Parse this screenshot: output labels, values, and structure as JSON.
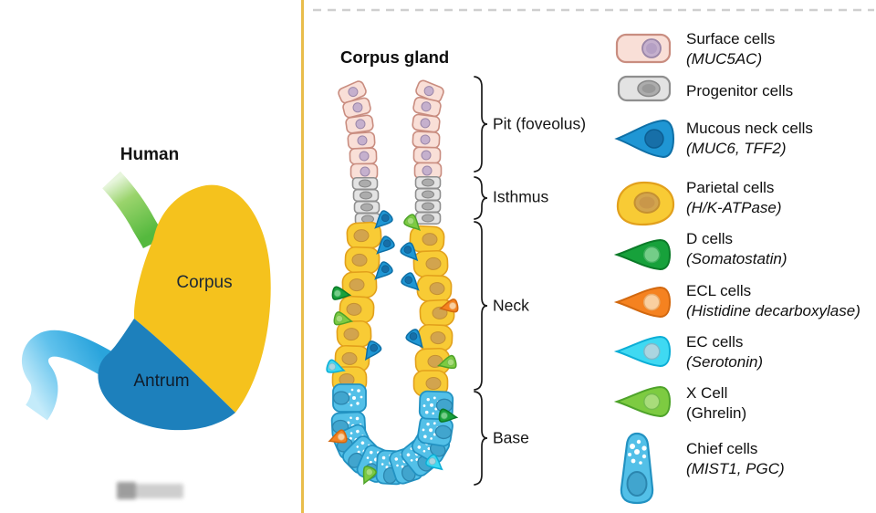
{
  "divider_color": "#E9BD4B",
  "dashed_line_color": "#CFCFCF",
  "human_panel": {
    "title": "Human",
    "labels": [
      {
        "label": "Corpus"
      },
      {
        "label": "Antrum"
      }
    ],
    "corpus_color": "#F5C21D",
    "antrum_color": "#1D80BC",
    "esophagus_color": "#55B93E",
    "esophagus_light": "#E7F5DC",
    "duodenum_color": "#2AA4DC",
    "duodenum_light": "#C4EBFA"
  },
  "gland_panel": {
    "title": "Corpus gland",
    "regions": [
      {
        "label": "Pit (foveolus)"
      },
      {
        "label": "Isthmus"
      },
      {
        "label": "Neck"
      },
      {
        "label": "Base"
      }
    ]
  },
  "gland_cells": {
    "left_pit_count": 6,
    "right_pit_count": 6,
    "left_isthmus_count": 4,
    "right_isthmus_count": 4,
    "left_neck_parietal_count": 7,
    "right_neck_parietal_count": 7,
    "left_neck_wedges": [
      "mucous",
      "mucous",
      "mucous",
      "d",
      "x",
      "mucous",
      "ec"
    ],
    "right_neck_wedges": [
      "x",
      "mucous",
      "mucous",
      "ecl",
      "mucous",
      "x"
    ],
    "base_chief_count": 11,
    "base_wedges": [
      "ecl",
      "x",
      "ec",
      "d"
    ]
  },
  "legend": {
    "items": [
      {
        "type": "surface",
        "name": "Surface cells",
        "gene": "(MUC5AC)",
        "gene_italic": true
      },
      {
        "type": "progenitor",
        "name": "Progenitor cells",
        "gene": "",
        "gene_italic": false
      },
      {
        "type": "mucous",
        "name": "Mucous neck cells",
        "gene": "(MUC6, TFF2)",
        "gene_italic": true
      },
      {
        "type": "parietal",
        "name": "Parietal cells",
        "gene": "(H/K-ATPase)",
        "gene_italic": true
      },
      {
        "type": "d",
        "name": "D cells",
        "gene": "(Somatostatin)",
        "gene_italic": true
      },
      {
        "type": "ecl",
        "name": "ECL cells",
        "gene": "(Histidine decarboxylase)",
        "gene_italic": true
      },
      {
        "type": "ec",
        "name": "EC cells",
        "gene": "(Serotonin)",
        "gene_italic": true
      },
      {
        "type": "x",
        "name": "X Cell",
        "gene": "(Ghrelin)",
        "gene_italic": false
      },
      {
        "type": "chief",
        "name": "Chief cells",
        "gene": "(MIST1, PGC)",
        "gene_italic": true
      }
    ]
  },
  "cell_palette": {
    "surface": {
      "fill": "#F9DFD7",
      "stroke": "#C98D80",
      "nucleus": "#C5B0CD",
      "nucleus_stroke": "#9A86A8"
    },
    "progenitor": {
      "fill": "#E3E3E3",
      "stroke": "#8F8F8F",
      "nucleus": "#ACACAC",
      "nucleus_stroke": "#858585"
    },
    "mucous": {
      "fill": "#1F96D4",
      "stroke": "#0E6FA6",
      "nucleus": "#176FA8",
      "nucleus_stroke": "#0C5E92"
    },
    "parietal": {
      "fill": "#F8CB35",
      "stroke": "#E2A01C",
      "nucleus": "#D2A44E",
      "nucleus_stroke": "#C49032"
    },
    "d": {
      "fill": "#17A13B",
      "stroke": "#0B7A28",
      "nucleus": "#74CD88",
      "nucleus_stroke": "#3FAE5C"
    },
    "ecl": {
      "fill": "#F58220",
      "stroke": "#D2680F",
      "nucleus": "#F9CFA0",
      "nucleus_stroke": "#E9AB6B"
    },
    "ec": {
      "fill": "#3FD9F2",
      "stroke": "#0CAED6",
      "nucleus": "#ABD5E0",
      "nucleus_stroke": "#7BB9CA"
    },
    "x": {
      "fill": "#7DCB41",
      "stroke": "#4EA32A",
      "nucleus": "#A8DC7B",
      "nucleus_stroke": "#74BC4E"
    },
    "chief": {
      "fill": "#53C0E8",
      "stroke": "#2292C2",
      "nucleus": "#41A5CE",
      "nucleus_stroke": "#2B86AF",
      "speckle": "#FFFFFF"
    }
  }
}
